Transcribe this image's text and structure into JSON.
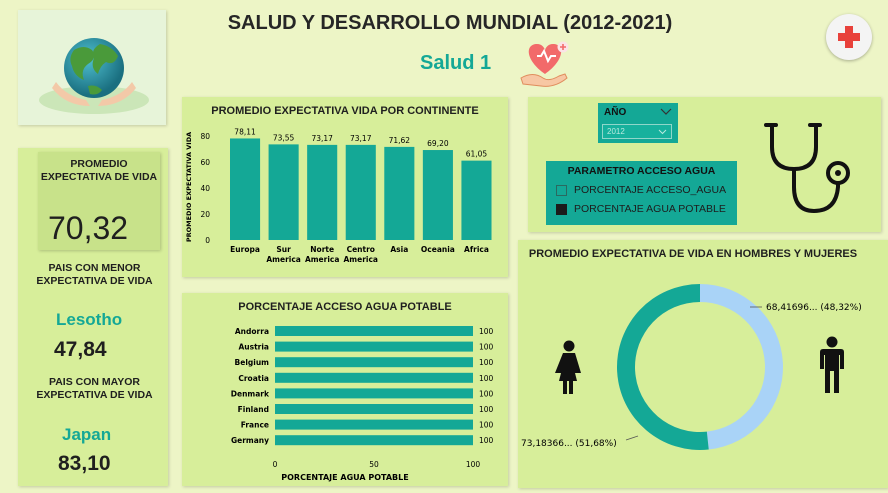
{
  "header": {
    "title": "SALUD Y DESARROLLO MUNDIAL (2012-2021)",
    "subtitle": "Salud 1"
  },
  "kpis": {
    "avg_label": "PROMEDIO EXPECTATIVA DE VIDA",
    "avg_value": "70,32",
    "min_label": "PAIS CON MENOR EXPECTATIVA DE VIDA",
    "min_country": "Lesotho",
    "min_value": "47,84",
    "max_label": "PAIS CON MAYOR EXPECTATIVA DE VIDA",
    "max_country": "Japan",
    "max_value": "83,10"
  },
  "filters": {
    "year_label": "AÑO",
    "year_value": "2012",
    "param_title": "PARAMETRO ACCESO AGUA",
    "options": [
      "PORCENTAJE ACCESO_AGUA",
      "PORCENTAJE AGUA POTABLE"
    ],
    "selected_index": 1
  },
  "colors": {
    "accent": "#14a896",
    "panel": "#d7ee9a",
    "light_blue": "#a9d3f7"
  },
  "chart_data": [
    {
      "type": "bar",
      "title": "PROMEDIO EXPECTATIVA VIDA POR CONTINENTE",
      "ylabel": "PROMEDIO EXPECTATIVA VIDA",
      "categories": [
        "Europa",
        "Sur America",
        "Norte America",
        "Centro America",
        "Asia",
        "Oceania",
        "Africa"
      ],
      "values": [
        78.11,
        73.55,
        73.17,
        73.17,
        71.62,
        69.2,
        61.05
      ],
      "data_labels": [
        "78,11",
        "73,55",
        "73,17",
        "73,17",
        "71,62",
        "69,20",
        "61,05"
      ],
      "yticks": [
        "0",
        "20",
        "40",
        "60",
        "80"
      ],
      "ylim": [
        0,
        80
      ]
    },
    {
      "type": "bar",
      "orientation": "horizontal",
      "title": "PORCENTAJE ACCESO AGUA POTABLE",
      "xlabel": "PORCENTAJE AGUA POTABLE",
      "categories": [
        "Andorra",
        "Austria",
        "Belgium",
        "Croatia",
        "Denmark",
        "Finland",
        "France",
        "Germany"
      ],
      "values": [
        100,
        100,
        100,
        100,
        100,
        100,
        100,
        100
      ],
      "xticks": [
        "0",
        "50",
        "100"
      ],
      "xlim": [
        0,
        100
      ]
    },
    {
      "type": "pie",
      "donut": true,
      "title": "PROMEDIO EXPECTATIVA DE VIDA EN HOMBRES Y MUJERES",
      "slices": [
        {
          "label": "68,41696... (48,32%)",
          "value": 48.32,
          "color": "#a9d3f7"
        },
        {
          "label": "73,18366... (51,68%)",
          "value": 51.68,
          "color": "#14a896"
        }
      ]
    }
  ]
}
